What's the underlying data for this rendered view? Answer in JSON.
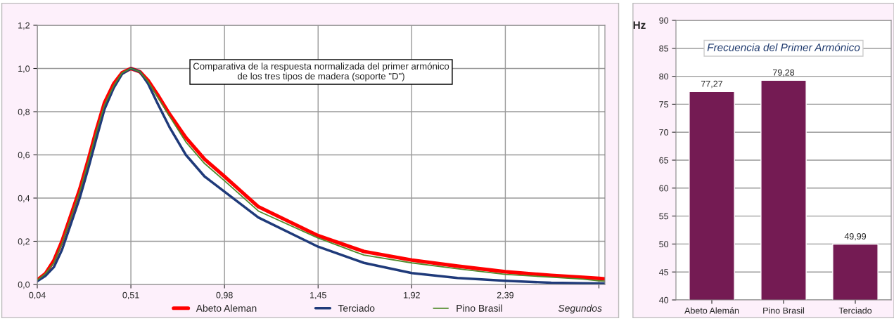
{
  "chart_data": [
    {
      "type": "line",
      "xlabel": "Segundos",
      "annotations": [
        "Comparativa de la respuesta normalizada del primer armónico\nde los tres tipos de madera (soporte \"D\")"
      ],
      "xlim": [
        0.04,
        2.89
      ],
      "ylim": [
        0,
        1.2
      ],
      "xticks": [
        {
          "value": 0.04,
          "label": "0,04"
        },
        {
          "value": 0.51,
          "label": "0,51"
        },
        {
          "value": 0.98,
          "label": "0,98"
        },
        {
          "value": 1.45,
          "label": "1,45"
        },
        {
          "value": 1.92,
          "label": "1,92"
        },
        {
          "value": 2.39,
          "label": "2,39"
        },
        {
          "value": 2.86,
          "label": null
        }
      ],
      "yticks": [
        {
          "value": 0,
          "label": "0,0"
        },
        {
          "value": 0.2,
          "label": "0,2"
        },
        {
          "value": 0.4,
          "label": "0,4"
        },
        {
          "value": 0.6,
          "label": "0,6"
        },
        {
          "value": 0.8,
          "label": "0,8"
        },
        {
          "value": 1.0,
          "label": "1,0"
        },
        {
          "value": 1.2,
          "label": "1,2"
        }
      ],
      "grid": true,
      "legend": "bottom",
      "marker": "none",
      "line_style": "solid",
      "x": [
        0.04,
        0.081,
        0.123,
        0.164,
        0.205,
        0.253,
        0.3,
        0.335,
        0.377,
        0.424,
        0.466,
        0.51,
        0.555,
        0.596,
        0.643,
        0.703,
        0.786,
        0.88,
        0.98,
        1.15,
        1.45,
        1.68,
        1.92,
        2.15,
        2.39,
        2.62,
        2.78,
        2.86,
        2.89
      ],
      "series": [
        {
          "name": "Abeto Aleman",
          "color": "#ff0000",
          "values": [
            0.02,
            0.05,
            0.11,
            0.2,
            0.31,
            0.44,
            0.59,
            0.71,
            0.84,
            0.93,
            0.98,
            1.0,
            0.985,
            0.945,
            0.88,
            0.79,
            0.68,
            0.58,
            0.5,
            0.36,
            0.226,
            0.153,
            0.113,
            0.085,
            0.059,
            0.042,
            0.033,
            0.028,
            0.026
          ]
        },
        {
          "name": "Terciado",
          "color": "#1f3a7a",
          "values": [
            0.015,
            0.04,
            0.08,
            0.16,
            0.27,
            0.4,
            0.55,
            0.67,
            0.81,
            0.91,
            0.975,
            1.0,
            0.985,
            0.93,
            0.84,
            0.73,
            0.6,
            0.5,
            0.43,
            0.31,
            0.175,
            0.1,
            0.053,
            0.03,
            0.017,
            0.008,
            0.006,
            0.005,
            0.005
          ]
        },
        {
          "name": "Pino Brasil",
          "color": "#4f8a2a",
          "values": [
            0.02,
            0.05,
            0.1,
            0.19,
            0.3,
            0.43,
            0.58,
            0.7,
            0.83,
            0.92,
            0.98,
            1.0,
            0.985,
            0.94,
            0.87,
            0.78,
            0.66,
            0.56,
            0.48,
            0.34,
            0.215,
            0.136,
            0.1,
            0.073,
            0.047,
            0.034,
            0.025,
            0.017,
            0.016
          ]
        }
      ]
    },
    {
      "type": "bar",
      "ylabel": "Hz",
      "annotations": [
        "Frecuencia del Primer Armónico"
      ],
      "categories": [
        "Abeto Alemán",
        "Pino Brasil",
        "Terciado"
      ],
      "values": [
        77.27,
        79.28,
        49.99
      ],
      "color": "#741b53",
      "value_labels": [
        "77,27",
        "79,28",
        "49,99"
      ],
      "ylim": [
        40,
        90
      ],
      "yticks": [
        40,
        45,
        50,
        55,
        60,
        65,
        70,
        75,
        80,
        85,
        90
      ],
      "grid": "y"
    }
  ]
}
